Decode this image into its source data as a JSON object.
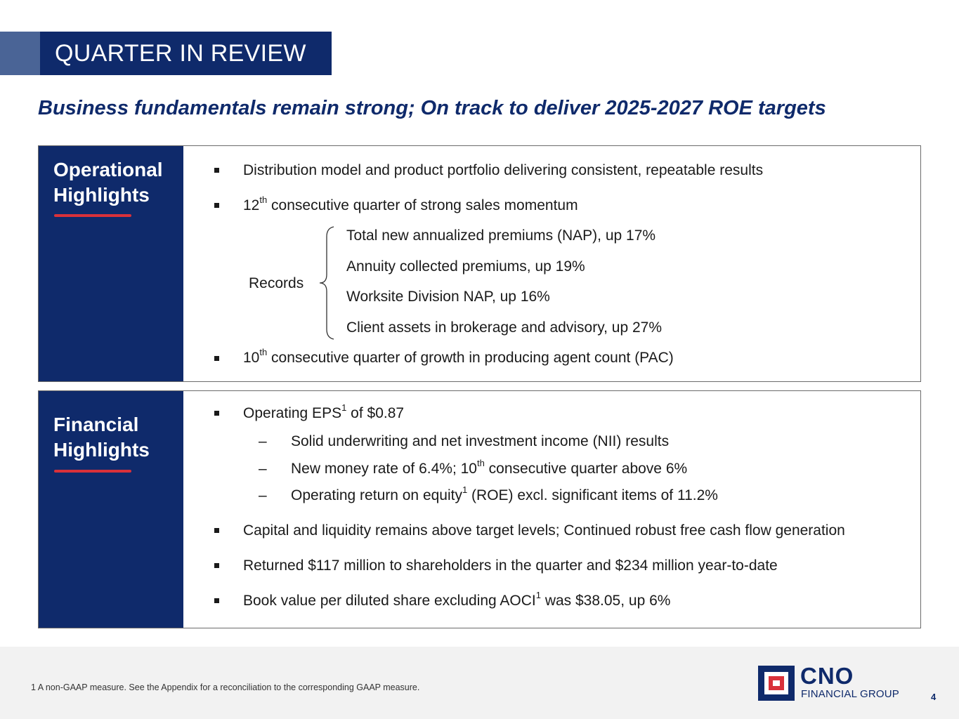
{
  "header": {
    "title": "QUARTER IN REVIEW",
    "subtitle": "Business fundamentals remain strong; On track to deliver 2025-2027 ROE targets"
  },
  "operational": {
    "title_line1": "Operational",
    "title_line2": "Highlights",
    "items": [
      "Distribution model and product portfolio delivering consistent, repeatable results",
      {
        "pre": "12",
        "sup": "th",
        "post": " consecutive quarter of strong sales momentum"
      },
      {
        "pre": "10",
        "sup": "th",
        "post": " consecutive quarter of growth in producing agent count (PAC)"
      }
    ],
    "records_label": "Records",
    "records": [
      "Total new annualized premiums (NAP), up 17%",
      "Annuity collected premiums, up 19%",
      "Worksite Division NAP, up 16%",
      "Client assets in brokerage and advisory, up 27%"
    ]
  },
  "financial": {
    "title_line1": "Financial",
    "title_line2": "Highlights",
    "eps": {
      "pre": "Operating EPS",
      "sup": "1",
      "post": " of $0.87"
    },
    "sub_items": [
      "Solid underwriting and net investment income (NII) results",
      {
        "pre": "New money rate of 6.4%; 10",
        "sup": "th",
        "post": " consecutive quarter above 6%"
      },
      {
        "pre": "Operating return on equity",
        "sup": "1",
        "post": " (ROE) excl. significant items of 11.2%"
      }
    ],
    "dash_symbol": "–",
    "items": [
      "Capital and liquidity remains above target levels; Continued robust free cash flow generation",
      "Returned $117 million to shareholders in the quarter and $234 million year-to-date",
      {
        "pre": "Book value per diluted share excluding AOCI",
        "sup": "1",
        "post": " was $38.05, up 6%"
      }
    ]
  },
  "footer": {
    "footnote": "1  A non-GAAP measure. See the Appendix for a reconciliation to the corresponding GAAP measure.",
    "logo_name": "CNO",
    "logo_sub": "FINANCIAL GROUP",
    "page_number": "4"
  },
  "colors": {
    "navy": "#0f2a6b",
    "accent_blue": "#4a6496",
    "red": "#d9313a",
    "footer_bg": "#f2f2f2"
  }
}
